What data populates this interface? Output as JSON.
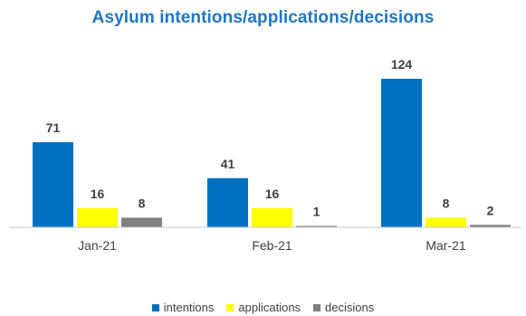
{
  "chart_data": {
    "type": "bar",
    "title": "Asylum intentions/applications/decisions",
    "categories": [
      "Jan-21",
      "Feb-21",
      "Mar-21"
    ],
    "series": [
      {
        "name": "intentions",
        "values": [
          71,
          41,
          124
        ],
        "color": "#0070c0"
      },
      {
        "name": "applications",
        "values": [
          16,
          16,
          8
        ],
        "color": "#ffff00"
      },
      {
        "name": "decisions",
        "values": [
          8,
          1,
          2
        ],
        "color": "#808080"
      }
    ],
    "ylim": [
      0,
      124
    ],
    "grid": false,
    "legend_position": "bottom",
    "data_labels": true
  }
}
